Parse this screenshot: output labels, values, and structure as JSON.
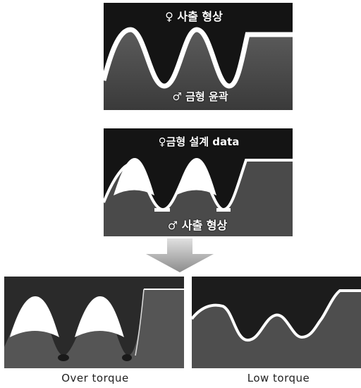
{
  "top_panel": {
    "top_label": "♀ 사출 형상",
    "bottom_label": "♂ 금형 윤곽"
  },
  "middle_panel": {
    "top_label": "♀금형 설계 data",
    "bottom_label": "♂ 사출 형상"
  },
  "bottom_left": {
    "caption": "Over torque"
  },
  "bottom_right": {
    "caption": "Low torque"
  },
  "colors": {
    "background_dark": "#141414",
    "surface_gray": "#4a4a4a",
    "outline_white": "#ffffff",
    "arrow_gray": "#8c8c8c"
  }
}
